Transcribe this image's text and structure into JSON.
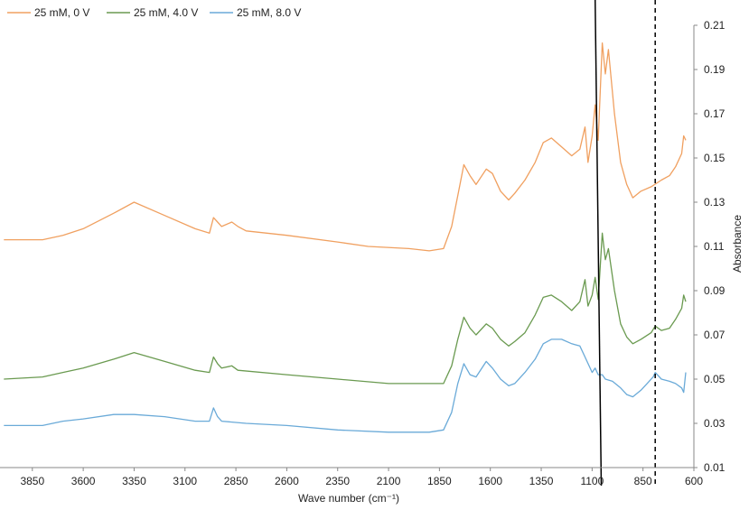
{
  "chart_data": {
    "type": "line",
    "x_reversed": true,
    "xlabel": "Wave number (cm⁻¹)",
    "ylabel": "Absorbance",
    "xlim": [
      4000,
      600
    ],
    "ylim": [
      0.01,
      0.21
    ],
    "x_ticks": [
      3850,
      3600,
      3350,
      3100,
      2850,
      2600,
      2350,
      2100,
      1850,
      1600,
      1350,
      1100,
      850,
      600
    ],
    "y_ticks": [
      0.01,
      0.03,
      0.05,
      0.07,
      0.09,
      0.11,
      0.13,
      0.15,
      0.17,
      0.19,
      0.21
    ],
    "grid": false,
    "legend_position": "top-left",
    "reference_lines": [
      {
        "style": "solid",
        "x_bottom": 1055,
        "x_top": 1085
      },
      {
        "style": "dashed",
        "x": 790
      }
    ],
    "series": [
      {
        "name": "25 mM, 0 V",
        "color": "#f0a060",
        "points": [
          [
            3990,
            0.113
          ],
          [
            3800,
            0.113
          ],
          [
            3700,
            0.115
          ],
          [
            3600,
            0.118
          ],
          [
            3450,
            0.125
          ],
          [
            3350,
            0.13
          ],
          [
            3200,
            0.124
          ],
          [
            3050,
            0.118
          ],
          [
            2980,
            0.116
          ],
          [
            2960,
            0.123
          ],
          [
            2940,
            0.121
          ],
          [
            2920,
            0.119
          ],
          [
            2870,
            0.121
          ],
          [
            2840,
            0.119
          ],
          [
            2800,
            0.117
          ],
          [
            2600,
            0.115
          ],
          [
            2350,
            0.112
          ],
          [
            2200,
            0.11
          ],
          [
            2000,
            0.109
          ],
          [
            1900,
            0.108
          ],
          [
            1830,
            0.109
          ],
          [
            1790,
            0.119
          ],
          [
            1760,
            0.133
          ],
          [
            1730,
            0.147
          ],
          [
            1700,
            0.142
          ],
          [
            1670,
            0.138
          ],
          [
            1620,
            0.145
          ],
          [
            1590,
            0.143
          ],
          [
            1550,
            0.135
          ],
          [
            1510,
            0.131
          ],
          [
            1480,
            0.134
          ],
          [
            1430,
            0.14
          ],
          [
            1380,
            0.148
          ],
          [
            1340,
            0.157
          ],
          [
            1300,
            0.159
          ],
          [
            1250,
            0.155
          ],
          [
            1200,
            0.151
          ],
          [
            1160,
            0.154
          ],
          [
            1135,
            0.164
          ],
          [
            1120,
            0.148
          ],
          [
            1100,
            0.16
          ],
          [
            1085,
            0.174
          ],
          [
            1070,
            0.158
          ],
          [
            1050,
            0.202
          ],
          [
            1035,
            0.188
          ],
          [
            1020,
            0.199
          ],
          [
            990,
            0.17
          ],
          [
            960,
            0.148
          ],
          [
            930,
            0.138
          ],
          [
            900,
            0.132
          ],
          [
            860,
            0.135
          ],
          [
            810,
            0.137
          ],
          [
            760,
            0.14
          ],
          [
            720,
            0.142
          ],
          [
            690,
            0.146
          ],
          [
            660,
            0.152
          ],
          [
            650,
            0.16
          ],
          [
            640,
            0.158
          ]
        ]
      },
      {
        "name": "25 mM, 4.0 V",
        "color": "#6a9a50",
        "points": [
          [
            3990,
            0.05
          ],
          [
            3800,
            0.051
          ],
          [
            3700,
            0.053
          ],
          [
            3600,
            0.055
          ],
          [
            3450,
            0.059
          ],
          [
            3350,
            0.062
          ],
          [
            3200,
            0.058
          ],
          [
            3050,
            0.054
          ],
          [
            2980,
            0.053
          ],
          [
            2960,
            0.06
          ],
          [
            2940,
            0.057
          ],
          [
            2920,
            0.055
          ],
          [
            2870,
            0.056
          ],
          [
            2840,
            0.054
          ],
          [
            2600,
            0.052
          ],
          [
            2350,
            0.05
          ],
          [
            2100,
            0.048
          ],
          [
            1900,
            0.048
          ],
          [
            1830,
            0.048
          ],
          [
            1790,
            0.056
          ],
          [
            1760,
            0.068
          ],
          [
            1730,
            0.078
          ],
          [
            1700,
            0.073
          ],
          [
            1670,
            0.07
          ],
          [
            1620,
            0.075
          ],
          [
            1590,
            0.073
          ],
          [
            1550,
            0.068
          ],
          [
            1510,
            0.065
          ],
          [
            1480,
            0.067
          ],
          [
            1430,
            0.071
          ],
          [
            1380,
            0.079
          ],
          [
            1340,
            0.087
          ],
          [
            1300,
            0.088
          ],
          [
            1250,
            0.085
          ],
          [
            1200,
            0.081
          ],
          [
            1160,
            0.085
          ],
          [
            1135,
            0.095
          ],
          [
            1120,
            0.083
          ],
          [
            1100,
            0.088
          ],
          [
            1085,
            0.096
          ],
          [
            1070,
            0.086
          ],
          [
            1050,
            0.116
          ],
          [
            1035,
            0.104
          ],
          [
            1020,
            0.109
          ],
          [
            990,
            0.09
          ],
          [
            960,
            0.075
          ],
          [
            930,
            0.069
          ],
          [
            900,
            0.066
          ],
          [
            860,
            0.068
          ],
          [
            810,
            0.071
          ],
          [
            790,
            0.074
          ],
          [
            760,
            0.072
          ],
          [
            720,
            0.073
          ],
          [
            690,
            0.077
          ],
          [
            660,
            0.082
          ],
          [
            650,
            0.088
          ],
          [
            640,
            0.085
          ]
        ]
      },
      {
        "name": "25 mM, 8.0 V",
        "color": "#6aaad8",
        "points": [
          [
            3990,
            0.029
          ],
          [
            3800,
            0.029
          ],
          [
            3700,
            0.031
          ],
          [
            3600,
            0.032
          ],
          [
            3450,
            0.034
          ],
          [
            3350,
            0.034
          ],
          [
            3200,
            0.033
          ],
          [
            3050,
            0.031
          ],
          [
            2980,
            0.031
          ],
          [
            2960,
            0.037
          ],
          [
            2940,
            0.033
          ],
          [
            2920,
            0.031
          ],
          [
            2800,
            0.03
          ],
          [
            2600,
            0.029
          ],
          [
            2350,
            0.027
          ],
          [
            2100,
            0.026
          ],
          [
            1900,
            0.026
          ],
          [
            1830,
            0.027
          ],
          [
            1790,
            0.035
          ],
          [
            1760,
            0.048
          ],
          [
            1730,
            0.057
          ],
          [
            1700,
            0.052
          ],
          [
            1670,
            0.051
          ],
          [
            1620,
            0.058
          ],
          [
            1590,
            0.055
          ],
          [
            1550,
            0.05
          ],
          [
            1510,
            0.047
          ],
          [
            1480,
            0.048
          ],
          [
            1430,
            0.053
          ],
          [
            1380,
            0.059
          ],
          [
            1340,
            0.066
          ],
          [
            1300,
            0.068
          ],
          [
            1250,
            0.068
          ],
          [
            1200,
            0.066
          ],
          [
            1160,
            0.065
          ],
          [
            1135,
            0.06
          ],
          [
            1100,
            0.053
          ],
          [
            1085,
            0.055
          ],
          [
            1070,
            0.052
          ],
          [
            1050,
            0.052
          ],
          [
            1035,
            0.05
          ],
          [
            1000,
            0.049
          ],
          [
            960,
            0.046
          ],
          [
            930,
            0.043
          ],
          [
            900,
            0.042
          ],
          [
            860,
            0.045
          ],
          [
            830,
            0.048
          ],
          [
            800,
            0.051
          ],
          [
            790,
            0.053
          ],
          [
            760,
            0.05
          ],
          [
            720,
            0.049
          ],
          [
            690,
            0.048
          ],
          [
            660,
            0.046
          ],
          [
            650,
            0.044
          ],
          [
            640,
            0.053
          ]
        ]
      }
    ]
  }
}
